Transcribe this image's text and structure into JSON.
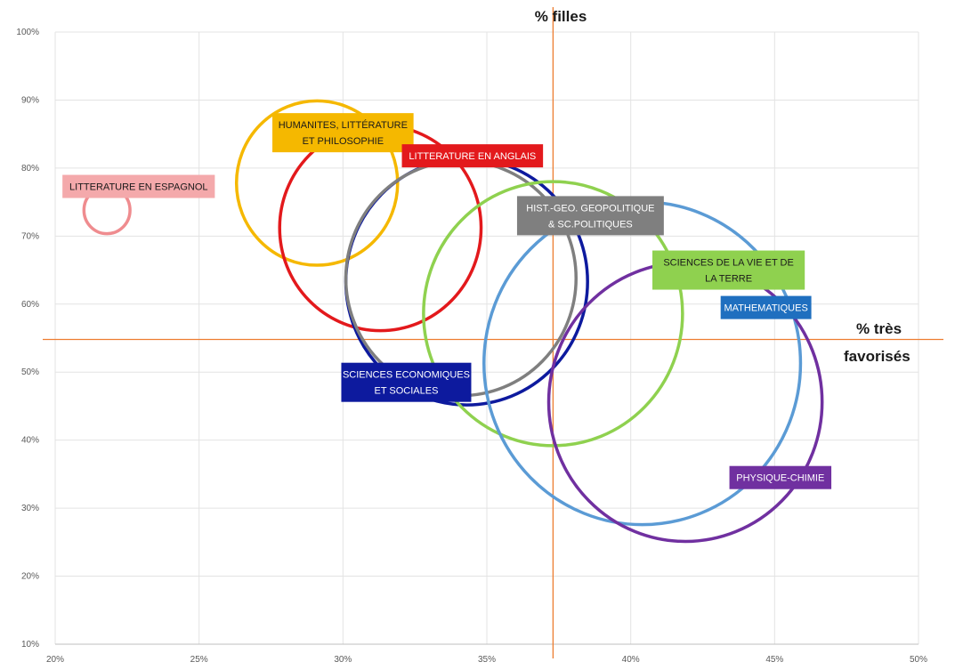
{
  "chart_data": {
    "type": "bubble",
    "xlabel": "% très favorisés",
    "ylabel": "% filles",
    "xlim": [
      20,
      50
    ],
    "ylim": [
      10,
      100
    ],
    "x_ticks": [
      "20%",
      "25%",
      "30%",
      "35%",
      "40%",
      "45%",
      "50%"
    ],
    "y_ticks": [
      "10%",
      "20%",
      "30%",
      "40%",
      "50%",
      "60%",
      "70%",
      "80%",
      "90%",
      "100%"
    ],
    "x_tick_values": [
      20,
      25,
      30,
      35,
      40,
      45,
      50
    ],
    "y_tick_values": [
      10,
      20,
      30,
      40,
      50,
      60,
      70,
      80,
      90,
      100
    ],
    "grid": true,
    "reference_lines": {
      "x": 37.3,
      "y": 54.8,
      "color": "#ed7d31"
    },
    "series": [
      {
        "name": "LITTERATURE  EN ESPAGNOL",
        "x": 21.8,
        "y": 73.8,
        "size": 1.6,
        "color": "#ef8c8f",
        "text_color": "#1a1a1a"
      },
      {
        "name": "HUMANITES, LITTÉRATURE ET PHILOSOPHIE",
        "x": 29.1,
        "y": 77.8,
        "size": 5.6,
        "color": "#f5b800",
        "text_color": "#1a1a1a"
      },
      {
        "name": "LITTERATURE EN ANGLAIS",
        "x": 31.3,
        "y": 71.2,
        "size": 7.0,
        "color": "#e3191c",
        "text_color": "#ffffff"
      },
      {
        "name": "SCIENCES ECONOMIQUES ET SOCIALES",
        "x": 34.3,
        "y": 63.3,
        "size": 8.4,
        "color": "#0d1a9e",
        "text_color": "#ffffff"
      },
      {
        "name": "HIST.-GEO. GEOPOLITIQUE & SC.POLITIQUES",
        "x": 34.1,
        "y": 63.8,
        "size": 8.0,
        "color": "#7f7f7f",
        "text_color": "#ffffff"
      },
      {
        "name": "SCIENCES DE LA VIE ET DE LA TERRE",
        "x": 37.3,
        "y": 58.6,
        "size": 9.0,
        "color": "#8fd14f",
        "text_color": "#1a1a1a"
      },
      {
        "name": "MATHEMATIQUES",
        "x": 40.4,
        "y": 51.3,
        "size": 11.0,
        "color": "#5b9bd5",
        "text_color": "#ffffff"
      },
      {
        "name": "PHYSIQUE-CHIMIE",
        "x": 41.9,
        "y": 45.6,
        "size": 9.5,
        "color": "#7030a0",
        "text_color": "#ffffff"
      }
    ],
    "labels": [
      {
        "lines": [
          "LITTERATURE  EN ESPAGNOL"
        ],
        "x": 22.9,
        "y": 77.3,
        "bg": "#f4a9ab",
        "fg": "#1a1a1a"
      },
      {
        "lines": [
          "HUMANITES, LITTÉRATURE",
          "ET PHILOSOPHIE"
        ],
        "x": 30.0,
        "y": 85.2,
        "bg": "#f5b800",
        "fg": "#1a1a1a"
      },
      {
        "lines": [
          "LITTERATURE EN ANGLAIS"
        ],
        "x": 34.5,
        "y": 81.8,
        "bg": "#e3191c",
        "fg": "#ffffff"
      },
      {
        "lines": [
          "HIST.-GEO. GEOPOLITIQUE",
          "& SC.POLITIQUES"
        ],
        "x": 38.6,
        "y": 73.0,
        "bg": "#7f7f7f",
        "fg": "#ffffff"
      },
      {
        "lines": [
          "SCIENCES DE LA VIE ET DE",
          "LA TERRE"
        ],
        "x": 43.4,
        "y": 65.0,
        "bg": "#8fd14f",
        "fg": "#1a1a1a"
      },
      {
        "lines": [
          "MATHEMATIQUES"
        ],
        "x": 44.7,
        "y": 59.5,
        "bg": "#1f6fbf",
        "fg": "#ffffff"
      },
      {
        "lines": [
          "SCIENCES ECONOMIQUES",
          "ET SOCIALES"
        ],
        "x": 32.2,
        "y": 48.5,
        "bg": "#0d1a9e",
        "fg": "#ffffff"
      },
      {
        "lines": [
          "PHYSIQUE-CHIMIE"
        ],
        "x": 45.2,
        "y": 34.5,
        "bg": "#7030a0",
        "fg": "#ffffff"
      }
    ]
  }
}
